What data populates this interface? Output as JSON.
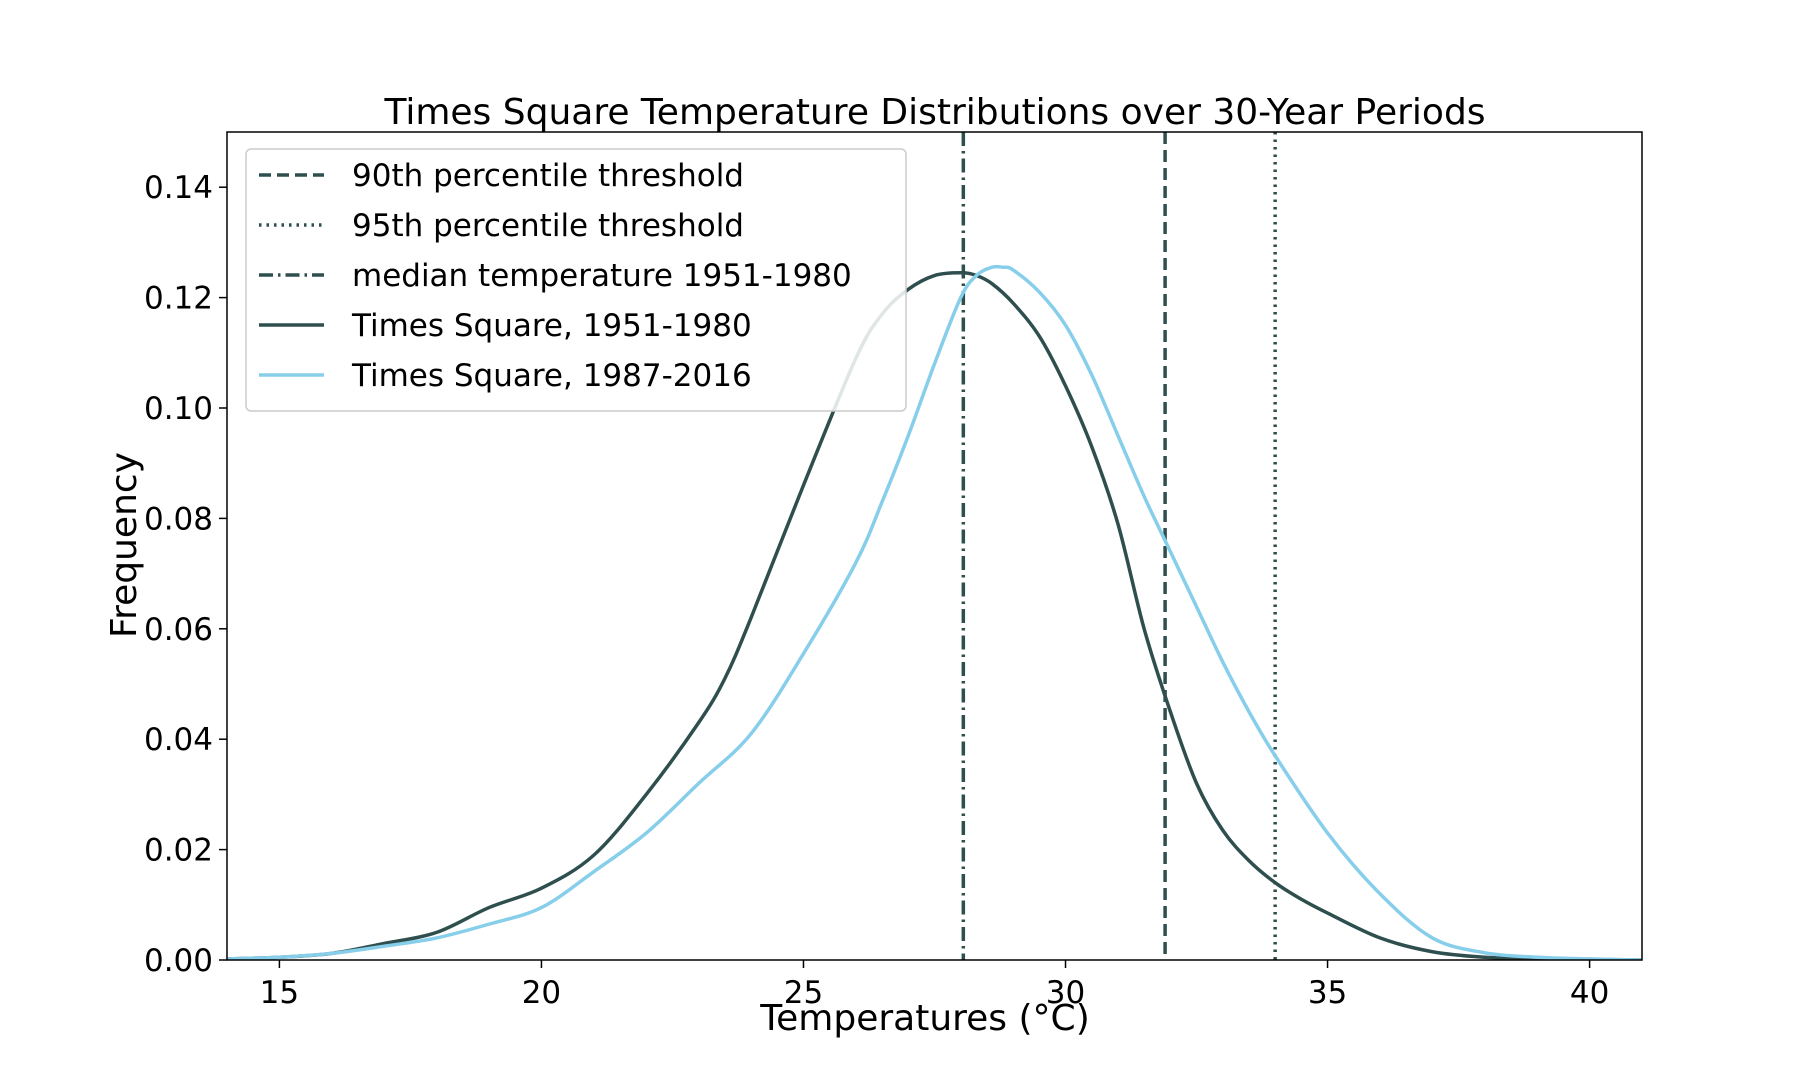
{
  "chart_data": {
    "type": "line",
    "title": "Times Square Temperature Distributions over 30-Year Periods",
    "xlabel": "Temperatures (°C)",
    "ylabel": "Frequency",
    "xlim": [
      14,
      41
    ],
    "ylim": [
      0,
      0.15
    ],
    "xticks": [
      15,
      20,
      25,
      30,
      35,
      40
    ],
    "xtick_labels": [
      "15",
      "20",
      "25",
      "30",
      "35",
      "40"
    ],
    "yticks": [
      0.0,
      0.02,
      0.04,
      0.06,
      0.08,
      0.1,
      0.12,
      0.14
    ],
    "ytick_labels": [
      "0.00",
      "0.02",
      "0.04",
      "0.06",
      "0.08",
      "0.10",
      "0.12",
      "0.14"
    ],
    "grid": false,
    "legend_position": "top-left",
    "vertical_lines": [
      {
        "name": "90th percentile threshold",
        "x": 31.9,
        "style": "dashed",
        "color": "#2f4f4f"
      },
      {
        "name": "95th percentile threshold",
        "x": 34.0,
        "style": "dotted",
        "color": "#2f4f4f"
      },
      {
        "name": "median temperature 1951-1980",
        "x": 28.05,
        "style": "dashdot",
        "color": "#2f4f4f"
      }
    ],
    "series": [
      {
        "name": "Times Square, 1951-1980",
        "color": "#2f4f4f",
        "x": [
          14,
          15,
          16,
          17,
          18,
          19,
          20,
          21,
          22,
          23,
          23.5,
          24,
          25,
          26,
          26.5,
          27,
          27.5,
          28,
          28.3,
          28.6,
          29,
          29.5,
          30,
          30.5,
          31,
          31.5,
          32,
          32.5,
          33,
          33.5,
          34,
          34.5,
          35,
          36,
          37,
          38,
          39,
          40,
          41
        ],
        "y": [
          0.0002,
          0.0005,
          0.0012,
          0.003,
          0.005,
          0.0095,
          0.013,
          0.019,
          0.03,
          0.043,
          0.051,
          0.062,
          0.086,
          0.109,
          0.117,
          0.1215,
          0.124,
          0.1245,
          0.124,
          0.1225,
          0.119,
          0.113,
          0.104,
          0.093,
          0.079,
          0.06,
          0.045,
          0.032,
          0.0235,
          0.018,
          0.014,
          0.011,
          0.0085,
          0.004,
          0.0015,
          0.0005,
          0.0002,
          0.0001,
          0.0
        ]
      },
      {
        "name": "Times Square, 1987-2016",
        "color": "#87ceeb",
        "x": [
          14,
          15,
          16,
          17,
          18,
          19,
          20,
          21,
          22,
          23,
          24,
          25,
          26,
          26.5,
          27,
          27.5,
          28,
          28.3,
          28.6,
          28.8,
          29,
          29.5,
          30,
          30.5,
          31,
          31.5,
          32,
          32.5,
          33,
          33.5,
          34,
          35,
          36,
          37,
          38,
          39,
          40,
          41
        ],
        "y": [
          0.0002,
          0.0005,
          0.0012,
          0.0025,
          0.004,
          0.0065,
          0.0095,
          0.016,
          0.023,
          0.032,
          0.041,
          0.0555,
          0.072,
          0.083,
          0.095,
          0.108,
          0.12,
          0.124,
          0.1255,
          0.1255,
          0.125,
          0.121,
          0.115,
          0.106,
          0.095,
          0.084,
          0.074,
          0.064,
          0.054,
          0.045,
          0.037,
          0.023,
          0.012,
          0.004,
          0.0013,
          0.0005,
          0.0002,
          0.0
        ]
      }
    ]
  }
}
